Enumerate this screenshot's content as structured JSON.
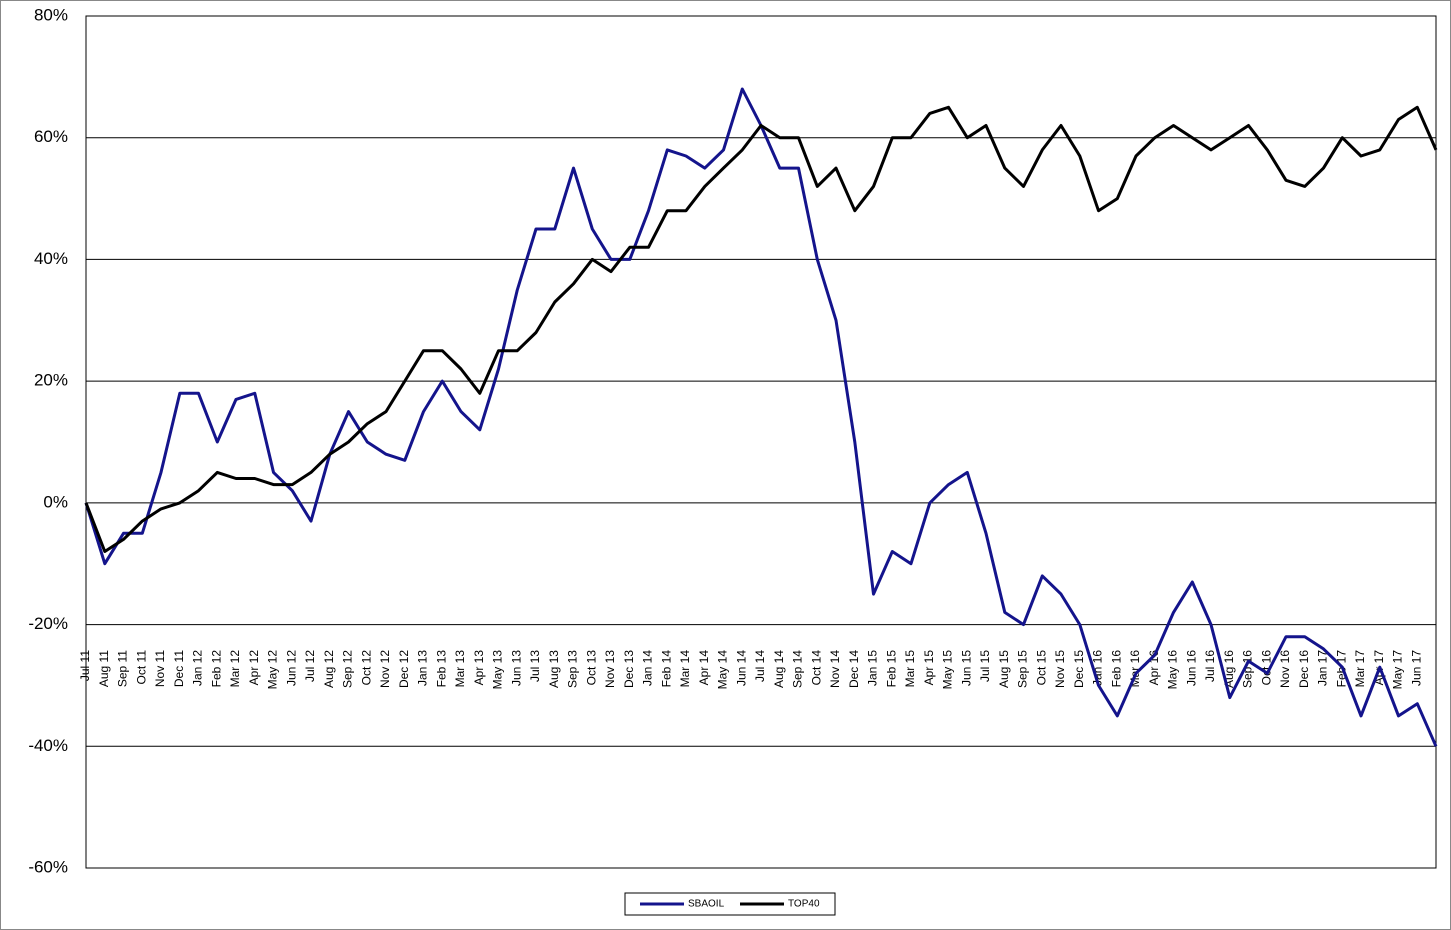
{
  "chart_data": {
    "type": "line",
    "categories": [
      "Jul 11",
      "Aug 11",
      "Sep 11",
      "Oct 11",
      "Nov 11",
      "Dec 11",
      "Jan 12",
      "Feb 12",
      "Mar 12",
      "Apr 12",
      "May 12",
      "Jun 12",
      "Jul 12",
      "Aug 12",
      "Sep 12",
      "Oct 12",
      "Nov 12",
      "Dec 12",
      "Jan 13",
      "Feb 13",
      "Mar 13",
      "Apr 13",
      "May 13",
      "Jun 13",
      "Jul 13",
      "Aug 13",
      "Sep 13",
      "Oct 13",
      "Nov 13",
      "Dec 13",
      "Jan 14",
      "Feb 14",
      "Mar 14",
      "Apr 14",
      "May 14",
      "Jun 14",
      "Jul 14",
      "Aug 14",
      "Sep 14",
      "Oct 14",
      "Nov 14",
      "Dec 14",
      "Jan 15",
      "Feb 15",
      "Mar 15",
      "Apr 15",
      "May 15",
      "Jun 15",
      "Jul 15",
      "Aug 15",
      "Sep 15",
      "Oct 15",
      "Nov 15",
      "Dec 15",
      "Jan 16",
      "Feb 16",
      "Mar 16",
      "Apr 16",
      "May 16",
      "Jun 16",
      "Jul 16",
      "Aug 16",
      "Sep 16",
      "Oct 16",
      "Nov 16",
      "Dec 16",
      "Jan 17",
      "Feb 17",
      "Mar 17",
      "Apr 17",
      "May 17",
      "Jun 17",
      null
    ],
    "series": [
      {
        "name": "SBAOIL",
        "color": "#14148c",
        "values": [
          0,
          -10,
          -5,
          -5,
          5,
          18,
          18,
          10,
          17,
          18,
          5,
          2,
          -3,
          8,
          15,
          10,
          8,
          7,
          15,
          20,
          15,
          12,
          22,
          35,
          45,
          45,
          55,
          45,
          40,
          40,
          48,
          58,
          57,
          55,
          58,
          68,
          62,
          55,
          55,
          40,
          30,
          10,
          -15,
          -8,
          -10,
          0,
          3,
          5,
          -5,
          -18,
          -20,
          -12,
          -15,
          -20,
          -30,
          -35,
          -28,
          -25,
          -18,
          -13,
          -20,
          -32,
          -26,
          -28,
          -22,
          -22,
          -24,
          -27,
          -35,
          -27,
          -35,
          -33,
          -40
        ]
      },
      {
        "name": "TOP40",
        "color": "#000000",
        "values": [
          0,
          -8,
          -6,
          -3,
          -1,
          0,
          2,
          5,
          4,
          4,
          3,
          3,
          5,
          8,
          10,
          13,
          15,
          20,
          25,
          25,
          22,
          18,
          25,
          25,
          28,
          33,
          36,
          40,
          38,
          42,
          42,
          48,
          48,
          52,
          55,
          58,
          62,
          60,
          60,
          52,
          55,
          48,
          52,
          60,
          60,
          64,
          65,
          60,
          62,
          55,
          52,
          58,
          62,
          57,
          48,
          50,
          57,
          60,
          62,
          60,
          58,
          60,
          62,
          58,
          53,
          52,
          55,
          60,
          57,
          58,
          63,
          65,
          58
        ]
      }
    ],
    "ylim": [
      -60,
      80
    ],
    "yticks": [
      {
        "value": -60,
        "label": "-60%"
      },
      {
        "value": -40,
        "label": "-40%"
      },
      {
        "value": -20,
        "label": "-20%"
      },
      {
        "value": 0,
        "label": "0%"
      },
      {
        "value": 20,
        "label": "20%"
      },
      {
        "value": 40,
        "label": "40%"
      },
      {
        "value": 60,
        "label": "60%"
      },
      {
        "value": 80,
        "label": "80%"
      }
    ],
    "grid": true
  }
}
